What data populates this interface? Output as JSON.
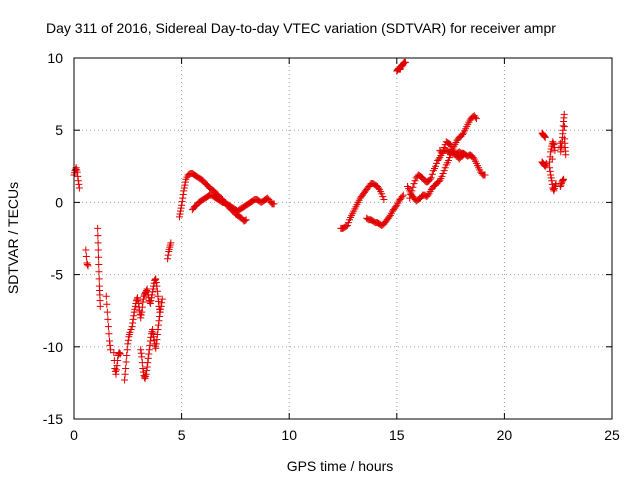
{
  "chart_data": {
    "type": "scatter",
    "title": "Day 311 of 2016, Sidereal Day-to-day VTEC variation (SDTVAR) for receiver ampr",
    "xlabel": "GPS time / hours",
    "ylabel": "SDTVAR / TECUs",
    "xlim": [
      0,
      25
    ],
    "ylim": [
      -15,
      10
    ],
    "xticks": [
      "0",
      "5",
      "10",
      "15",
      "20",
      "25"
    ],
    "yticks": [
      "10",
      "5",
      "0",
      "-5",
      "-10",
      "-15"
    ],
    "grid": true,
    "marker": "plus",
    "color": "#e00000",
    "segments": [
      [
        [
          0.0,
          1.9
        ],
        [
          0.05,
          2.2
        ],
        [
          0.1,
          2.4
        ],
        [
          0.15,
          2.1
        ],
        [
          0.2,
          1.5
        ],
        [
          0.25,
          1.0
        ]
      ],
      [
        [
          0.55,
          -3.3
        ],
        [
          0.6,
          -4.2
        ],
        [
          0.65,
          -4.4
        ]
      ],
      [
        [
          1.1,
          -1.8
        ],
        [
          1.12,
          -2.8
        ],
        [
          1.14,
          -3.8
        ],
        [
          1.16,
          -4.8
        ],
        [
          1.18,
          -5.8
        ],
        [
          1.2,
          -6.4
        ],
        [
          1.22,
          -7.2
        ]
      ],
      [
        [
          1.5,
          -6.5
        ],
        [
          1.55,
          -7.6
        ],
        [
          1.6,
          -8.6
        ],
        [
          1.65,
          -9.6
        ],
        [
          1.7,
          -10.2
        ]
      ],
      [
        [
          1.85,
          -10.4
        ],
        [
          1.9,
          -11.5
        ],
        [
          1.95,
          -11.9
        ],
        [
          2.0,
          -11.3
        ],
        [
          2.05,
          -10.6
        ],
        [
          2.1,
          -10.4
        ],
        [
          2.15,
          -10.5
        ]
      ],
      [
        [
          2.35,
          -12.3
        ],
        [
          2.4,
          -11.5
        ],
        [
          2.45,
          -10.6
        ],
        [
          2.5,
          -9.8
        ],
        [
          2.55,
          -9.3
        ],
        [
          2.6,
          -9.0
        ],
        [
          2.7,
          -8.6
        ],
        [
          2.75,
          -8.1
        ],
        [
          2.8,
          -7.6
        ],
        [
          2.85,
          -7.2
        ],
        [
          2.9,
          -6.8
        ],
        [
          2.95,
          -6.6
        ],
        [
          3.0,
          -7.0
        ],
        [
          3.05,
          -7.5
        ],
        [
          3.1,
          -8.0
        ],
        [
          3.15,
          -7.6
        ],
        [
          3.2,
          -6.9
        ],
        [
          3.25,
          -6.5
        ],
        [
          3.3,
          -6.3
        ],
        [
          3.35,
          -6.2
        ],
        [
          3.4,
          -6.0
        ],
        [
          3.45,
          -6.4
        ],
        [
          3.5,
          -6.8
        ],
        [
          3.55,
          -7.0
        ],
        [
          3.6,
          -6.6
        ],
        [
          3.65,
          -6.2
        ],
        [
          3.7,
          -5.8
        ],
        [
          3.75,
          -5.4
        ],
        [
          3.8,
          -5.3
        ],
        [
          3.85,
          -5.8
        ],
        [
          3.9,
          -6.5
        ],
        [
          3.95,
          -7.2
        ],
        [
          4.0,
          -7.6
        ],
        [
          4.05,
          -7.2
        ],
        [
          4.1,
          -6.7
        ]
      ],
      [
        [
          3.1,
          -10.2
        ],
        [
          3.15,
          -10.7
        ],
        [
          3.2,
          -11.5
        ],
        [
          3.25,
          -12.0
        ],
        [
          3.3,
          -12.2
        ],
        [
          3.35,
          -11.9
        ],
        [
          3.4,
          -11.4
        ],
        [
          3.45,
          -10.8
        ],
        [
          3.5,
          -10.2
        ],
        [
          3.55,
          -9.6
        ],
        [
          3.6,
          -9.1
        ],
        [
          3.65,
          -8.8
        ],
        [
          3.7,
          -9.3
        ],
        [
          3.75,
          -9.8
        ],
        [
          3.8,
          -10.1
        ],
        [
          3.85,
          -9.5
        ],
        [
          3.9,
          -8.8
        ],
        [
          3.95,
          -8.2
        ],
        [
          4.0,
          -7.6
        ]
      ],
      [
        [
          4.35,
          -3.9
        ],
        [
          4.4,
          -3.4
        ],
        [
          4.45,
          -3.1
        ],
        [
          4.5,
          -2.8
        ]
      ],
      [
        [
          4.9,
          -1.0
        ],
        [
          4.95,
          -0.6
        ],
        [
          5.0,
          -0.2
        ],
        [
          5.05,
          0.3
        ],
        [
          5.1,
          0.8
        ],
        [
          5.15,
          1.2
        ],
        [
          5.2,
          1.6
        ],
        [
          5.3,
          1.9
        ],
        [
          5.4,
          2.0
        ],
        [
          5.5,
          2.0
        ],
        [
          5.6,
          1.9
        ],
        [
          5.7,
          1.8
        ],
        [
          5.8,
          1.7
        ],
        [
          5.9,
          1.6
        ],
        [
          6.0,
          1.5
        ],
        [
          6.1,
          1.3
        ],
        [
          6.2,
          1.2
        ],
        [
          6.3,
          1.0
        ],
        [
          6.4,
          0.9
        ],
        [
          6.5,
          0.8
        ],
        [
          6.6,
          0.6
        ],
        [
          6.7,
          0.5
        ],
        [
          6.8,
          0.3
        ],
        [
          6.9,
          0.2
        ],
        [
          7.0,
          0.0
        ],
        [
          7.1,
          -0.2
        ],
        [
          7.2,
          -0.3
        ],
        [
          7.3,
          -0.5
        ],
        [
          7.4,
          -0.6
        ],
        [
          7.5,
          -0.8
        ],
        [
          7.6,
          -0.9
        ],
        [
          7.7,
          -1.0
        ],
        [
          7.8,
          -1.1
        ],
        [
          7.9,
          -1.3
        ],
        [
          8.0,
          -1.2
        ]
      ],
      [
        [
          5.5,
          -0.5
        ],
        [
          5.6,
          -0.3
        ],
        [
          5.7,
          -0.2
        ],
        [
          5.8,
          0.0
        ],
        [
          5.9,
          0.1
        ],
        [
          6.0,
          0.2
        ],
        [
          6.1,
          0.3
        ],
        [
          6.2,
          0.4
        ],
        [
          6.3,
          0.5
        ],
        [
          6.4,
          0.5
        ],
        [
          6.5,
          0.4
        ],
        [
          6.6,
          0.3
        ],
        [
          6.7,
          0.2
        ],
        [
          6.8,
          0.1
        ],
        [
          6.9,
          0.0
        ],
        [
          7.0,
          0.0
        ],
        [
          7.1,
          -0.1
        ],
        [
          7.2,
          -0.2
        ],
        [
          7.3,
          -0.3
        ],
        [
          7.4,
          -0.4
        ],
        [
          7.5,
          -0.5
        ],
        [
          7.6,
          -0.6
        ],
        [
          7.7,
          -0.5
        ],
        [
          7.8,
          -0.4
        ],
        [
          7.9,
          -0.3
        ],
        [
          8.0,
          -0.2
        ],
        [
          8.1,
          -0.1
        ],
        [
          8.2,
          0.0
        ],
        [
          8.3,
          0.1
        ],
        [
          8.4,
          0.2
        ],
        [
          8.5,
          0.2
        ],
        [
          8.6,
          0.1
        ],
        [
          8.7,
          0.0
        ],
        [
          8.8,
          0.1
        ],
        [
          8.9,
          0.2
        ],
        [
          9.0,
          0.3
        ],
        [
          9.1,
          0.1
        ],
        [
          9.2,
          -0.1
        ],
        [
          9.3,
          -0.1
        ]
      ],
      [
        [
          12.4,
          -1.8
        ],
        [
          12.5,
          -1.8
        ],
        [
          12.6,
          -1.7
        ],
        [
          12.7,
          -1.6
        ],
        [
          12.8,
          -1.2
        ],
        [
          12.9,
          -0.9
        ],
        [
          13.0,
          -0.6
        ],
        [
          13.1,
          -0.3
        ],
        [
          13.2,
          0.0
        ],
        [
          13.3,
          0.3
        ],
        [
          13.4,
          0.5
        ],
        [
          13.5,
          0.7
        ],
        [
          13.6,
          0.9
        ],
        [
          13.7,
          1.1
        ],
        [
          13.8,
          1.3
        ],
        [
          13.9,
          1.3
        ],
        [
          14.0,
          1.2
        ],
        [
          14.1,
          1.1
        ],
        [
          14.2,
          0.9
        ],
        [
          14.3,
          0.6
        ],
        [
          14.4,
          0.2
        ]
      ],
      [
        [
          13.6,
          -1.1
        ],
        [
          13.7,
          -1.2
        ],
        [
          13.8,
          -1.2
        ],
        [
          13.9,
          -1.3
        ],
        [
          14.0,
          -1.4
        ],
        [
          14.1,
          -1.4
        ],
        [
          14.2,
          -1.5
        ],
        [
          14.3,
          -1.6
        ],
        [
          14.4,
          -1.5
        ],
        [
          14.5,
          -1.3
        ],
        [
          14.6,
          -1.1
        ],
        [
          14.7,
          -0.9
        ],
        [
          14.8,
          -0.6
        ],
        [
          14.9,
          -0.4
        ],
        [
          15.0,
          -0.2
        ],
        [
          15.1,
          0.1
        ],
        [
          15.2,
          0.3
        ],
        [
          15.3,
          0.5
        ]
      ],
      [
        [
          15.0,
          9.1
        ],
        [
          15.05,
          9.2
        ],
        [
          15.1,
          9.3
        ],
        [
          15.15,
          9.2
        ],
        [
          15.2,
          9.4
        ],
        [
          15.25,
          9.5
        ],
        [
          15.3,
          9.6
        ],
        [
          15.35,
          9.7
        ],
        [
          15.4,
          9.7
        ]
      ],
      [
        [
          15.6,
          0.3
        ],
        [
          15.7,
          0.8
        ],
        [
          15.8,
          1.3
        ],
        [
          15.9,
          1.7
        ],
        [
          16.0,
          1.9
        ],
        [
          16.1,
          1.8
        ],
        [
          16.2,
          1.7
        ],
        [
          16.3,
          1.5
        ],
        [
          16.4,
          1.4
        ],
        [
          16.5,
          1.5
        ],
        [
          16.6,
          1.7
        ],
        [
          16.7,
          2.2
        ],
        [
          16.8,
          2.5
        ],
        [
          16.9,
          2.9
        ],
        [
          17.0,
          3.1
        ],
        [
          17.1,
          3.4
        ],
        [
          17.2,
          3.6
        ],
        [
          17.3,
          3.6
        ],
        [
          17.4,
          3.5
        ],
        [
          17.5,
          3.5
        ],
        [
          17.6,
          3.4
        ],
        [
          17.7,
          3.3
        ],
        [
          17.8,
          3.4
        ],
        [
          17.9,
          3.5
        ],
        [
          18.0,
          3.4
        ],
        [
          18.1,
          3.4
        ],
        [
          18.2,
          3.3
        ],
        [
          18.3,
          3.2
        ],
        [
          18.4,
          3.3
        ],
        [
          18.5,
          3.2
        ],
        [
          18.6,
          3.0
        ],
        [
          18.7,
          2.7
        ],
        [
          18.8,
          2.4
        ],
        [
          18.9,
          2.1
        ],
        [
          19.0,
          1.9
        ],
        [
          19.1,
          1.9
        ]
      ],
      [
        [
          15.5,
          1.1
        ],
        [
          15.6,
          0.8
        ],
        [
          15.7,
          0.5
        ],
        [
          15.8,
          0.3
        ],
        [
          15.9,
          0.1
        ],
        [
          16.0,
          0.2
        ],
        [
          16.1,
          0.3
        ],
        [
          16.2,
          0.5
        ],
        [
          16.3,
          0.5
        ],
        [
          16.4,
          0.4
        ],
        [
          16.5,
          0.6
        ],
        [
          16.6,
          0.9
        ],
        [
          16.7,
          1.1
        ],
        [
          16.8,
          1.2
        ],
        [
          16.9,
          1.4
        ],
        [
          17.0,
          1.5
        ],
        [
          17.1,
          1.8
        ],
        [
          17.2,
          2.2
        ],
        [
          17.3,
          2.6
        ],
        [
          17.4,
          2.9
        ],
        [
          17.5,
          3.3
        ],
        [
          17.6,
          3.7
        ],
        [
          17.7,
          4.0
        ],
        [
          17.8,
          4.3
        ],
        [
          17.9,
          4.5
        ],
        [
          18.0,
          4.6
        ],
        [
          18.1,
          4.8
        ],
        [
          18.2,
          5.1
        ],
        [
          18.3,
          5.4
        ],
        [
          18.4,
          5.7
        ],
        [
          18.5,
          5.9
        ],
        [
          18.6,
          6.0
        ],
        [
          18.7,
          5.8
        ]
      ],
      [
        [
          17.0,
          3.6
        ],
        [
          17.1,
          3.4
        ],
        [
          17.2,
          3.8
        ],
        [
          17.3,
          4.2
        ],
        [
          17.4,
          4.1
        ],
        [
          17.5,
          4.0
        ],
        [
          17.6,
          3.7
        ],
        [
          17.7,
          3.4
        ],
        [
          17.8,
          3.2
        ],
        [
          17.9,
          3.0
        ],
        [
          18.0,
          3.2
        ],
        [
          18.1,
          3.3
        ]
      ],
      [
        [
          21.75,
          4.8
        ],
        [
          21.8,
          4.7
        ],
        [
          21.85,
          4.6
        ],
        [
          21.9,
          4.5
        ]
      ],
      [
        [
          21.75,
          2.8
        ],
        [
          21.8,
          2.7
        ],
        [
          21.85,
          2.6
        ],
        [
          21.9,
          2.5
        ],
        [
          21.95,
          2.7
        ]
      ],
      [
        [
          22.1,
          2.8
        ],
        [
          22.15,
          3.5
        ],
        [
          22.2,
          3.9
        ],
        [
          22.25,
          4.2
        ],
        [
          22.3,
          4.0
        ],
        [
          22.35,
          3.6
        ],
        [
          22.1,
          2.4
        ],
        [
          22.15,
          1.9
        ],
        [
          22.2,
          1.5
        ],
        [
          22.25,
          1.0
        ],
        [
          22.3,
          0.8
        ],
        [
          22.35,
          1.1
        ],
        [
          22.4,
          1.3
        ]
      ],
      [
        [
          22.6,
          1.1
        ],
        [
          22.65,
          1.3
        ],
        [
          22.7,
          1.5
        ],
        [
          22.75,
          1.6
        ]
      ],
      [
        [
          22.6,
          4.1
        ],
        [
          22.62,
          3.5
        ],
        [
          22.65,
          3.9
        ],
        [
          22.7,
          4.5
        ],
        [
          22.72,
          5.0
        ],
        [
          22.75,
          5.6
        ],
        [
          22.78,
          6.1
        ],
        [
          22.8,
          4.4
        ],
        [
          22.82,
          3.8
        ],
        [
          22.85,
          3.3
        ]
      ]
    ]
  }
}
